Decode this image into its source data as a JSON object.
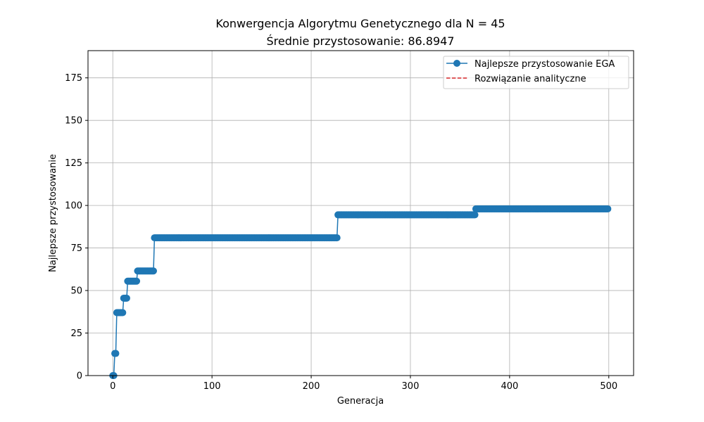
{
  "chart_data": {
    "type": "line",
    "title": "Konwergencja Algorytmu Genetycznego dla N = 45",
    "subtitle": "Średnie przystosowanie: 86.8947",
    "xlabel": "Generacja",
    "ylabel": "Najlepsze przystosowanie",
    "xlim": [
      -25,
      525
    ],
    "ylim": [
      0,
      191
    ],
    "x_ticks": [
      0,
      100,
      200,
      300,
      400,
      500
    ],
    "y_ticks": [
      0,
      25,
      50,
      75,
      100,
      125,
      150,
      175
    ],
    "grid": true,
    "legend_position": "top-right",
    "series": [
      {
        "name": "Najlepsze przystosowanie EGA",
        "color": "#1f77b4",
        "marker": "circle",
        "style": "solid",
        "steps": [
          {
            "x_start": 0,
            "x_end": 1,
            "y": 0
          },
          {
            "x_start": 2,
            "x_end": 3,
            "y": 13
          },
          {
            "x_start": 4,
            "x_end": 10,
            "y": 37
          },
          {
            "x_start": 11,
            "x_end": 14,
            "y": 45.5
          },
          {
            "x_start": 15,
            "x_end": 24,
            "y": 55.5
          },
          {
            "x_start": 25,
            "x_end": 41,
            "y": 61.5
          },
          {
            "x_start": 42,
            "x_end": 226,
            "y": 81
          },
          {
            "x_start": 227,
            "x_end": 365,
            "y": 94.5
          },
          {
            "x_start": 366,
            "x_end": 499,
            "y": 98
          }
        ]
      },
      {
        "name": "Rozwiązanie analityczne",
        "color": "#d62728",
        "style": "dashed",
        "values": []
      }
    ]
  }
}
